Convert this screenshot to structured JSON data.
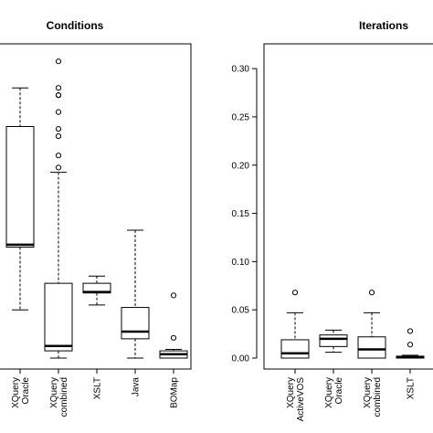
{
  "chart_data": [
    {
      "type": "box",
      "title": "Conditions",
      "xlabel": "",
      "ylabel": "",
      "categories": [
        "XQuery\nOracle",
        "XQuery\ncombined",
        "XSLT",
        "Java",
        "BOMap"
      ],
      "boxes": [
        {
          "category": "XQuery\nOracle",
          "whisker_low": 0.1,
          "q1": 0.23,
          "median": 0.235,
          "q3": 0.48,
          "whisker_high": 0.56,
          "outliers": []
        },
        {
          "category": "XQuery\ncombined",
          "whisker_low": 0.0,
          "q1": 0.015,
          "median": 0.025,
          "q3": 0.155,
          "whisker_high": 0.385,
          "outliers": [
            0.615,
            0.56,
            0.545,
            0.545,
            0.51,
            0.475,
            0.46,
            0.42,
            0.395
          ]
        },
        {
          "category": "XSLT",
          "whisker_low": 0.11,
          "q1": 0.135,
          "median": 0.137,
          "q3": 0.155,
          "whisker_high": 0.17,
          "outliers": []
        },
        {
          "category": "Java",
          "whisker_low": 0.0,
          "q1": 0.04,
          "median": 0.055,
          "q3": 0.105,
          "whisker_high": 0.265,
          "outliers": []
        },
        {
          "category": "BOMap",
          "whisker_low": 0.0,
          "q1": 0.0,
          "median": 0.008,
          "q3": 0.015,
          "whisker_high": 0.018,
          "outliers": [
            0.13,
            0.042
          ]
        }
      ]
    },
    {
      "type": "box",
      "title": "Iterations",
      "xlabel": "",
      "ylabel": "",
      "ylim": [
        0,
        0.3
      ],
      "yticks": [
        "0.00",
        "0.05",
        "0.10",
        "0.15",
        "0.20",
        "0.25",
        "0.30"
      ],
      "categories": [
        "XQuery\nActiveVOS",
        "XQuery\nOracle",
        "XQuery\ncombined",
        "XSLT",
        ""
      ],
      "boxes": [
        {
          "category": "XQuery\nActiveVOS",
          "whisker_low": 0.0,
          "q1": 0.0,
          "median": 0.005,
          "q3": 0.019,
          "whisker_high": 0.047,
          "outliers": [
            0.068
          ]
        },
        {
          "category": "XQuery\nOracle",
          "whisker_low": 0.006,
          "q1": 0.012,
          "median": 0.02,
          "q3": 0.024,
          "whisker_high": 0.029,
          "outliers": []
        },
        {
          "category": "XQuery\ncombined",
          "whisker_low": 0.0,
          "q1": 0.0,
          "median": 0.009,
          "q3": 0.022,
          "whisker_high": 0.047,
          "outliers": [
            0.068
          ]
        },
        {
          "category": "XSLT",
          "whisker_low": 0.0,
          "q1": 0.0,
          "median": 0.001,
          "q3": 0.002,
          "whisker_high": 0.003,
          "outliers": [
            0.028,
            0.014
          ]
        },
        {
          "category": "",
          "whisker_low": 0.0,
          "q1": 0.0,
          "median": 0.0,
          "q3": 0.0,
          "whisker_high": 0.0,
          "outliers": []
        }
      ]
    }
  ]
}
